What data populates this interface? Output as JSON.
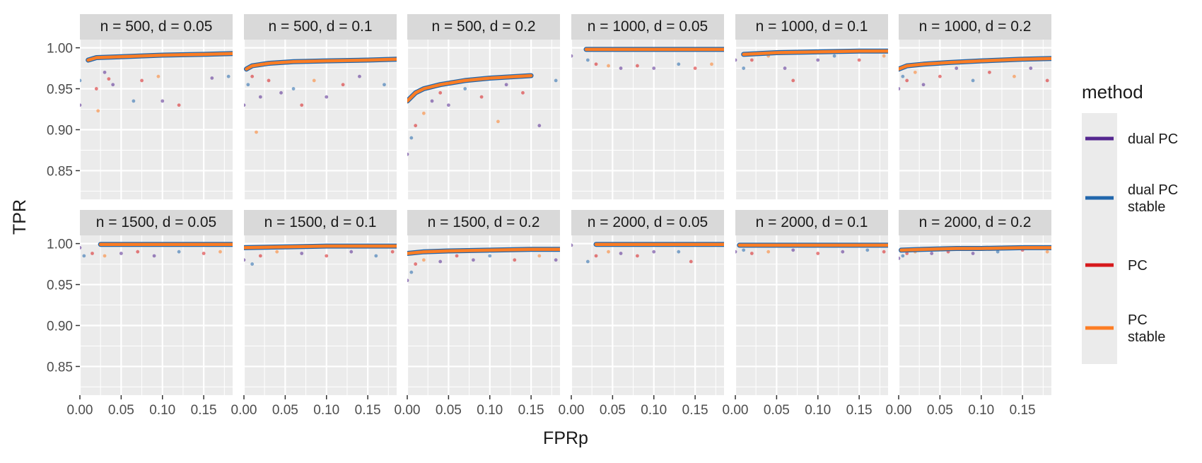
{
  "chart_data": {
    "type": "scatter",
    "facet_layout": "2 rows x 6 columns",
    "xlabel": "FPRp",
    "ylabel": "TPR",
    "xlim": [
      0,
      0.185
    ],
    "ylim": [
      0.815,
      1.01
    ],
    "x_ticks": [
      0,
      0.05,
      0.1,
      0.15
    ],
    "x_tick_labels": [
      "0.00",
      "0.05",
      "0.10",
      "0.15"
    ],
    "y_ticks": [
      0.85,
      0.9,
      0.95,
      1.0
    ],
    "y_tick_labels": [
      "0.85",
      "0.90",
      "0.95",
      "1.00"
    ],
    "grid": true,
    "legend": {
      "title": "method",
      "placement": "right",
      "entries": [
        {
          "label": "dual PC",
          "color": "#54278f"
        },
        {
          "label": "dual PC stable",
          "color": "#2166ac"
        },
        {
          "label": "PC",
          "color": "#d7191c"
        },
        {
          "label": "PC stable",
          "color": "#fd7d24"
        }
      ]
    },
    "panels": [
      {
        "title": "n = 500, d = 0.05",
        "curve": [
          [
            0.01,
            0.985
          ],
          [
            0.02,
            0.988
          ],
          [
            0.05,
            0.989
          ],
          [
            0.1,
            0.991
          ],
          [
            0.15,
            0.992
          ],
          [
            0.185,
            0.993
          ]
        ],
        "points": [
          [
            0.0,
            0.93
          ],
          [
            0.0,
            0.96
          ],
          [
            0.02,
            0.95
          ],
          [
            0.022,
            0.923
          ],
          [
            0.03,
            0.97
          ],
          [
            0.035,
            0.962
          ],
          [
            0.04,
            0.955
          ],
          [
            0.065,
            0.935
          ],
          [
            0.075,
            0.96
          ],
          [
            0.095,
            0.965
          ],
          [
            0.1,
            0.935
          ],
          [
            0.12,
            0.93
          ],
          [
            0.16,
            0.963
          ],
          [
            0.18,
            0.965
          ]
        ]
      },
      {
        "title": "n = 500, d = 0.1",
        "curve": [
          [
            0.003,
            0.974
          ],
          [
            0.01,
            0.978
          ],
          [
            0.03,
            0.981
          ],
          [
            0.06,
            0.983
          ],
          [
            0.1,
            0.984
          ],
          [
            0.15,
            0.985
          ],
          [
            0.185,
            0.986
          ]
        ],
        "points": [
          [
            0.0,
            0.93
          ],
          [
            0.005,
            0.955
          ],
          [
            0.01,
            0.965
          ],
          [
            0.015,
            0.897
          ],
          [
            0.02,
            0.94
          ],
          [
            0.03,
            0.96
          ],
          [
            0.045,
            0.945
          ],
          [
            0.06,
            0.95
          ],
          [
            0.07,
            0.93
          ],
          [
            0.085,
            0.96
          ],
          [
            0.1,
            0.94
          ],
          [
            0.12,
            0.955
          ],
          [
            0.14,
            0.965
          ],
          [
            0.17,
            0.955
          ]
        ]
      },
      {
        "title": "n = 500, d = 0.2",
        "curve": [
          [
            0.0,
            0.935
          ],
          [
            0.01,
            0.945
          ],
          [
            0.02,
            0.95
          ],
          [
            0.04,
            0.955
          ],
          [
            0.07,
            0.96
          ],
          [
            0.1,
            0.963
          ],
          [
            0.15,
            0.966
          ]
        ],
        "points": [
          [
            0.0,
            0.87
          ],
          [
            0.005,
            0.89
          ],
          [
            0.01,
            0.905
          ],
          [
            0.02,
            0.92
          ],
          [
            0.03,
            0.935
          ],
          [
            0.04,
            0.945
          ],
          [
            0.05,
            0.93
          ],
          [
            0.07,
            0.95
          ],
          [
            0.09,
            0.94
          ],
          [
            0.11,
            0.91
          ],
          [
            0.12,
            0.955
          ],
          [
            0.14,
            0.945
          ],
          [
            0.16,
            0.905
          ],
          [
            0.18,
            0.96
          ]
        ]
      },
      {
        "title": "n = 1000, d = 0.05",
        "curve": [
          [
            0.018,
            0.998
          ],
          [
            0.05,
            0.998
          ],
          [
            0.1,
            0.998
          ],
          [
            0.15,
            0.998
          ],
          [
            0.185,
            0.998
          ]
        ],
        "points": [
          [
            0.0,
            0.99
          ],
          [
            0.02,
            0.985
          ],
          [
            0.03,
            0.98
          ],
          [
            0.045,
            0.978
          ],
          [
            0.06,
            0.975
          ],
          [
            0.08,
            0.978
          ],
          [
            0.1,
            0.975
          ],
          [
            0.13,
            0.98
          ],
          [
            0.15,
            0.975
          ],
          [
            0.17,
            0.98
          ]
        ]
      },
      {
        "title": "n = 1000, d = 0.1",
        "curve": [
          [
            0.01,
            0.992
          ],
          [
            0.05,
            0.994
          ],
          [
            0.1,
            0.995
          ],
          [
            0.15,
            0.996
          ],
          [
            0.185,
            0.996
          ]
        ],
        "points": [
          [
            0.0,
            0.985
          ],
          [
            0.01,
            0.975
          ],
          [
            0.02,
            0.985
          ],
          [
            0.04,
            0.99
          ],
          [
            0.06,
            0.975
          ],
          [
            0.07,
            0.96
          ],
          [
            0.1,
            0.985
          ],
          [
            0.12,
            0.99
          ],
          [
            0.15,
            0.985
          ],
          [
            0.18,
            0.99
          ]
        ]
      },
      {
        "title": "n = 1000, d = 0.2",
        "curve": [
          [
            0.0,
            0.974
          ],
          [
            0.01,
            0.978
          ],
          [
            0.03,
            0.98
          ],
          [
            0.06,
            0.982
          ],
          [
            0.1,
            0.984
          ],
          [
            0.15,
            0.986
          ],
          [
            0.185,
            0.987
          ]
        ],
        "points": [
          [
            0.0,
            0.95
          ],
          [
            0.005,
            0.965
          ],
          [
            0.01,
            0.96
          ],
          [
            0.02,
            0.97
          ],
          [
            0.03,
            0.955
          ],
          [
            0.05,
            0.965
          ],
          [
            0.07,
            0.975
          ],
          [
            0.09,
            0.96
          ],
          [
            0.11,
            0.97
          ],
          [
            0.14,
            0.965
          ],
          [
            0.16,
            0.975
          ],
          [
            0.18,
            0.96
          ]
        ]
      },
      {
        "title": "n = 1500, d = 0.05",
        "curve": [
          [
            0.025,
            0.999
          ],
          [
            0.05,
            0.999
          ],
          [
            0.1,
            0.999
          ],
          [
            0.15,
            0.999
          ],
          [
            0.185,
            0.999
          ]
        ],
        "points": [
          [
            0.0,
            0.995
          ],
          [
            0.005,
            0.985
          ],
          [
            0.015,
            0.988
          ],
          [
            0.03,
            0.985
          ],
          [
            0.05,
            0.988
          ],
          [
            0.07,
            0.99
          ],
          [
            0.09,
            0.985
          ],
          [
            0.12,
            0.99
          ],
          [
            0.15,
            0.988
          ],
          [
            0.17,
            0.99
          ]
        ]
      },
      {
        "title": "n = 1500, d = 0.1",
        "curve": [
          [
            0.0,
            0.995
          ],
          [
            0.05,
            0.996
          ],
          [
            0.1,
            0.997
          ],
          [
            0.15,
            0.997
          ],
          [
            0.185,
            0.997
          ]
        ],
        "points": [
          [
            0.0,
            0.98
          ],
          [
            0.01,
            0.975
          ],
          [
            0.02,
            0.985
          ],
          [
            0.04,
            0.99
          ],
          [
            0.07,
            0.988
          ],
          [
            0.1,
            0.985
          ],
          [
            0.13,
            0.99
          ],
          [
            0.16,
            0.985
          ],
          [
            0.18,
            0.99
          ]
        ]
      },
      {
        "title": "n = 1500, d = 0.2",
        "curve": [
          [
            0.0,
            0.988
          ],
          [
            0.02,
            0.99
          ],
          [
            0.05,
            0.991
          ],
          [
            0.1,
            0.992
          ],
          [
            0.15,
            0.993
          ],
          [
            0.185,
            0.993
          ]
        ],
        "points": [
          [
            0.0,
            0.955
          ],
          [
            0.005,
            0.965
          ],
          [
            0.01,
            0.975
          ],
          [
            0.02,
            0.98
          ],
          [
            0.04,
            0.978
          ],
          [
            0.06,
            0.985
          ],
          [
            0.08,
            0.98
          ],
          [
            0.1,
            0.985
          ],
          [
            0.13,
            0.98
          ],
          [
            0.16,
            0.985
          ],
          [
            0.18,
            0.98
          ]
        ]
      },
      {
        "title": "n = 2000, d = 0.05",
        "curve": [
          [
            0.03,
            0.999
          ],
          [
            0.05,
            0.999
          ],
          [
            0.1,
            0.999
          ],
          [
            0.15,
            0.999
          ],
          [
            0.185,
            0.999
          ]
        ],
        "points": [
          [
            0.0,
            0.998
          ],
          [
            0.02,
            0.978
          ],
          [
            0.03,
            0.985
          ],
          [
            0.045,
            0.99
          ],
          [
            0.06,
            0.988
          ],
          [
            0.08,
            0.985
          ],
          [
            0.1,
            0.99
          ],
          [
            0.13,
            0.99
          ],
          [
            0.145,
            0.978
          ]
        ]
      },
      {
        "title": "n = 2000, d = 0.1",
        "curve": [
          [
            0.005,
            0.998
          ],
          [
            0.05,
            0.998
          ],
          [
            0.1,
            0.998
          ],
          [
            0.15,
            0.998
          ],
          [
            0.185,
            0.998
          ]
        ],
        "points": [
          [
            0.0,
            0.99
          ],
          [
            0.01,
            0.992
          ],
          [
            0.02,
            0.988
          ],
          [
            0.04,
            0.99
          ],
          [
            0.07,
            0.992
          ],
          [
            0.1,
            0.988
          ],
          [
            0.13,
            0.99
          ],
          [
            0.16,
            0.992
          ],
          [
            0.18,
            0.99
          ]
        ]
      },
      {
        "title": "n = 2000, d = 0.2",
        "curve": [
          [
            0.003,
            0.992
          ],
          [
            0.03,
            0.993
          ],
          [
            0.07,
            0.994
          ],
          [
            0.1,
            0.994
          ],
          [
            0.15,
            0.995
          ],
          [
            0.185,
            0.995
          ]
        ],
        "points": [
          [
            0.0,
            0.982
          ],
          [
            0.005,
            0.985
          ],
          [
            0.01,
            0.988
          ],
          [
            0.02,
            0.99
          ],
          [
            0.04,
            0.988
          ],
          [
            0.06,
            0.99
          ],
          [
            0.09,
            0.988
          ],
          [
            0.12,
            0.99
          ],
          [
            0.15,
            0.992
          ],
          [
            0.18,
            0.99
          ]
        ]
      }
    ]
  }
}
